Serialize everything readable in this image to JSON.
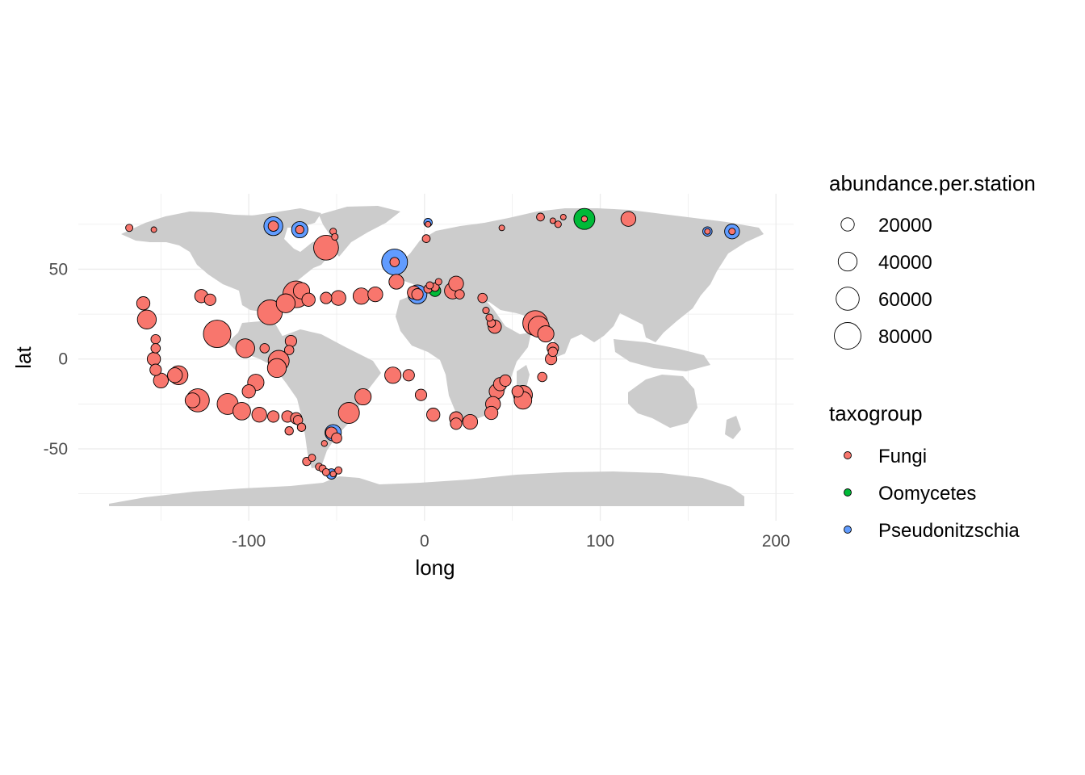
{
  "chart_data": {
    "type": "scatter",
    "title": "",
    "xlabel": "long",
    "ylabel": "lat",
    "xlim": [
      -197,
      210
    ],
    "ylim": [
      -90,
      92
    ],
    "x_ticks": [
      -100,
      0,
      100,
      200
    ],
    "y_ticks": [
      -50,
      0,
      50
    ],
    "grid": true,
    "basemap": "world land polygons (gray)",
    "legend_position": "right",
    "colors": {
      "Fungi": "#F8766D",
      "Oomycetes": "#00BA38",
      "Pseudonitzschia": "#619CFF",
      "land": "#cccccc",
      "grid": "#ebebeb"
    },
    "size_legend": {
      "title": "abundance.per.station",
      "values": [
        20000,
        40000,
        60000,
        80000
      ]
    },
    "color_legend": {
      "title": "taxogroup",
      "entries": [
        "Fungi",
        "Oomycetes",
        "Pseudonitzschia"
      ]
    },
    "series": [
      {
        "name": "Pseudonitzschia",
        "color": "#619CFF",
        "points": [
          {
            "long": -86,
            "lat": 74,
            "abundance": 40000
          },
          {
            "long": -71,
            "lat": 72,
            "abundance": 30000
          },
          {
            "long": -17,
            "lat": 54,
            "abundance": 75000
          },
          {
            "long": 2,
            "lat": 76,
            "abundance": 8000
          },
          {
            "long": -4,
            "lat": 36,
            "abundance": 40000
          },
          {
            "long": 161,
            "lat": 71,
            "abundance": 10000
          },
          {
            "long": 175,
            "lat": 71,
            "abundance": 25000
          },
          {
            "long": -52,
            "lat": -41,
            "abundance": 30000
          },
          {
            "long": -53,
            "lat": -64,
            "abundance": 12000
          }
        ]
      },
      {
        "name": "Oomycetes",
        "color": "#00BA38",
        "points": [
          {
            "long": 91,
            "lat": 78,
            "abundance": 50000
          },
          {
            "long": 6,
            "lat": 38,
            "abundance": 15000
          }
        ]
      },
      {
        "name": "Fungi",
        "color": "#F8766D",
        "points": [
          {
            "long": -168,
            "lat": 73,
            "abundance": 6000
          },
          {
            "long": -154,
            "lat": 72,
            "abundance": 3000
          },
          {
            "long": -86,
            "lat": 74,
            "abundance": 12000
          },
          {
            "long": -71,
            "lat": 72,
            "abundance": 8000
          },
          {
            "long": -52,
            "lat": 71,
            "abundance": 5000
          },
          {
            "long": -51,
            "lat": 68,
            "abundance": 5000
          },
          {
            "long": -56,
            "lat": 62,
            "abundance": 70000
          },
          {
            "long": -17,
            "lat": 54,
            "abundance": 10000
          },
          {
            "long": 1,
            "lat": 67,
            "abundance": 7000
          },
          {
            "long": 2,
            "lat": 75,
            "abundance": 3000
          },
          {
            "long": 44,
            "lat": 73,
            "abundance": 3000
          },
          {
            "long": 66,
            "lat": 79,
            "abundance": 7000
          },
          {
            "long": 73,
            "lat": 77,
            "abundance": 3000
          },
          {
            "long": 76,
            "lat": 75,
            "abundance": 5000
          },
          {
            "long": 79,
            "lat": 79,
            "abundance": 3000
          },
          {
            "long": 91,
            "lat": 78,
            "abundance": 4000
          },
          {
            "long": 116,
            "lat": 78,
            "abundance": 25000
          },
          {
            "long": 161,
            "lat": 71,
            "abundance": 3000
          },
          {
            "long": 175,
            "lat": 71,
            "abundance": 5000
          },
          {
            "long": -160,
            "lat": 31,
            "abundance": 20000
          },
          {
            "long": -158,
            "lat": 22,
            "abundance": 40000
          },
          {
            "long": -127,
            "lat": 35,
            "abundance": 20000
          },
          {
            "long": -122,
            "lat": 33,
            "abundance": 15000
          },
          {
            "long": -88,
            "lat": 26,
            "abundance": 70000
          },
          {
            "long": -79,
            "lat": 31,
            "abundance": 40000
          },
          {
            "long": -73,
            "lat": 36,
            "abundance": 80000
          },
          {
            "long": -70,
            "lat": 38,
            "abundance": 30000
          },
          {
            "long": -66,
            "lat": 33,
            "abundance": 20000
          },
          {
            "long": -56,
            "lat": 34,
            "abundance": 15000
          },
          {
            "long": -49,
            "lat": 34,
            "abundance": 25000
          },
          {
            "long": -36,
            "lat": 35,
            "abundance": 30000
          },
          {
            "long": -28,
            "lat": 36,
            "abundance": 25000
          },
          {
            "long": -16,
            "lat": 43,
            "abundance": 25000
          },
          {
            "long": -6,
            "lat": 37,
            "abundance": 20000
          },
          {
            "long": -4,
            "lat": 36,
            "abundance": 15000
          },
          {
            "long": 2,
            "lat": 39,
            "abundance": 8000
          },
          {
            "long": 3,
            "lat": 41,
            "abundance": 6000
          },
          {
            "long": 6,
            "lat": 40,
            "abundance": 8000
          },
          {
            "long": 8,
            "lat": 43,
            "abundance": 5000
          },
          {
            "long": 16,
            "lat": 38,
            "abundance": 30000
          },
          {
            "long": 18,
            "lat": 42,
            "abundance": 25000
          },
          {
            "long": 20,
            "lat": 36,
            "abundance": 10000
          },
          {
            "long": 33,
            "lat": 34,
            "abundance": 10000
          },
          {
            "long": 35,
            "lat": 27,
            "abundance": 5000
          },
          {
            "long": 37,
            "lat": 23,
            "abundance": 6000
          },
          {
            "long": 38,
            "lat": 20,
            "abundance": 8000
          },
          {
            "long": 40,
            "lat": 18,
            "abundance": 20000
          },
          {
            "long": 63,
            "lat": 20,
            "abundance": 70000
          },
          {
            "long": 65,
            "lat": 18,
            "abundance": 50000
          },
          {
            "long": 69,
            "lat": 14,
            "abundance": 30000
          },
          {
            "long": 73,
            "lat": 6,
            "abundance": 15000
          },
          {
            "long": 73,
            "lat": 4,
            "abundance": 10000
          },
          {
            "long": 72,
            "lat": 0,
            "abundance": 15000
          },
          {
            "long": 67,
            "lat": -10,
            "abundance": 10000
          },
          {
            "long": 46,
            "lat": -12,
            "abundance": 15000
          },
          {
            "long": 43,
            "lat": -14,
            "abundance": 20000
          },
          {
            "long": 41,
            "lat": -18,
            "abundance": 25000
          },
          {
            "long": 39,
            "lat": -25,
            "abundance": 25000
          },
          {
            "long": 53,
            "lat": -18,
            "abundance": 15000
          },
          {
            "long": 56,
            "lat": -20,
            "abundance": 40000
          },
          {
            "long": 56,
            "lat": -23,
            "abundance": 35000
          },
          {
            "long": 38,
            "lat": -30,
            "abundance": 20000
          },
          {
            "long": 26,
            "lat": -35,
            "abundance": 25000
          },
          {
            "long": 18,
            "lat": -33,
            "abundance": 20000
          },
          {
            "long": 18,
            "lat": -36,
            "abundance": 15000
          },
          {
            "long": 5,
            "lat": -31,
            "abundance": 20000
          },
          {
            "long": -2,
            "lat": -20,
            "abundance": 15000
          },
          {
            "long": -9,
            "lat": -9,
            "abundance": 15000
          },
          {
            "long": -18,
            "lat": -9,
            "abundance": 30000
          },
          {
            "long": -35,
            "lat": -21,
            "abundance": 30000
          },
          {
            "long": -43,
            "lat": -30,
            "abundance": 50000
          },
          {
            "long": -83,
            "lat": -1,
            "abundance": 50000
          },
          {
            "long": -84,
            "lat": -5,
            "abundance": 40000
          },
          {
            "long": -91,
            "lat": 6,
            "abundance": 10000
          },
          {
            "long": -102,
            "lat": 6,
            "abundance": 40000
          },
          {
            "long": -118,
            "lat": 14,
            "abundance": 85000
          },
          {
            "long": -76,
            "lat": 10,
            "abundance": 15000
          },
          {
            "long": -77,
            "lat": 5,
            "abundance": 10000
          },
          {
            "long": -96,
            "lat": -13,
            "abundance": 30000
          },
          {
            "long": -100,
            "lat": -18,
            "abundance": 20000
          },
          {
            "long": -140,
            "lat": -9,
            "abundance": 40000
          },
          {
            "long": -142,
            "lat": -9,
            "abundance": 25000
          },
          {
            "long": -153,
            "lat": 11,
            "abundance": 10000
          },
          {
            "long": -153,
            "lat": 6,
            "abundance": 10000
          },
          {
            "long": -154,
            "lat": 0,
            "abundance": 20000
          },
          {
            "long": -153,
            "lat": -6,
            "abundance": 15000
          },
          {
            "long": -150,
            "lat": -12,
            "abundance": 25000
          },
          {
            "long": -132,
            "lat": -23,
            "abundance": 25000
          },
          {
            "long": -129,
            "lat": -23,
            "abundance": 60000
          },
          {
            "long": -112,
            "lat": -25,
            "abundance": 50000
          },
          {
            "long": -104,
            "lat": -29,
            "abundance": 35000
          },
          {
            "long": -94,
            "lat": -31,
            "abundance": 25000
          },
          {
            "long": -86,
            "lat": -32,
            "abundance": 15000
          },
          {
            "long": -78,
            "lat": -32,
            "abundance": 15000
          },
          {
            "long": -73,
            "lat": -33,
            "abundance": 15000
          },
          {
            "long": -72,
            "lat": -34,
            "abundance": 10000
          },
          {
            "long": -77,
            "lat": -40,
            "abundance": 8000
          },
          {
            "long": -70,
            "lat": -38,
            "abundance": 8000
          },
          {
            "long": -57,
            "lat": -47,
            "abundance": 4000
          },
          {
            "long": -53,
            "lat": -41,
            "abundance": 15000
          },
          {
            "long": -50,
            "lat": -44,
            "abundance": 12000
          },
          {
            "long": -64,
            "lat": -55,
            "abundance": 6000
          },
          {
            "long": -67,
            "lat": -57,
            "abundance": 8000
          },
          {
            "long": -60,
            "lat": -60,
            "abundance": 6000
          },
          {
            "long": -58,
            "lat": -61,
            "abundance": 6000
          },
          {
            "long": -56,
            "lat": -63,
            "abundance": 6000
          },
          {
            "long": -49,
            "lat": -62,
            "abundance": 6000
          },
          {
            "long": -52,
            "lat": -64,
            "abundance": 4000
          }
        ]
      }
    ]
  }
}
